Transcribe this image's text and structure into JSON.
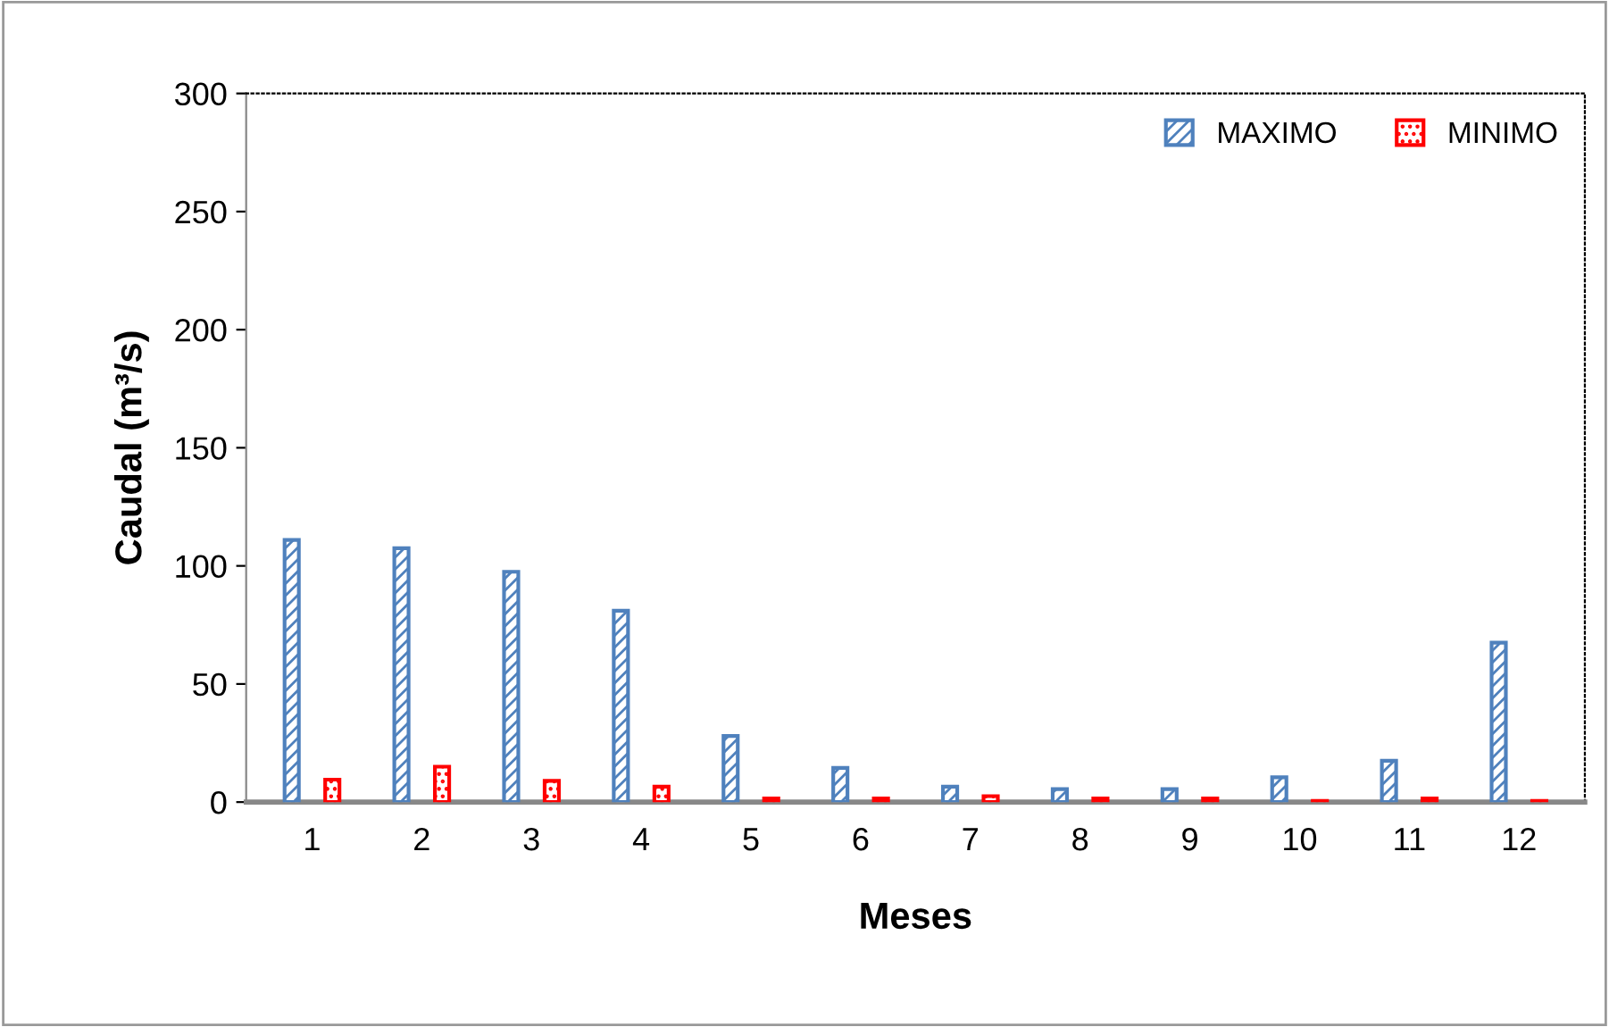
{
  "chart_data": {
    "type": "bar",
    "xlabel": "Meses",
    "ylabel": "Caudal (m³/s)",
    "categories": [
      "1",
      "2",
      "3",
      "4",
      "5",
      "6",
      "7",
      "8",
      "9",
      "10",
      "11",
      "12"
    ],
    "series": [
      {
        "name": "MAXIMO",
        "color": "#4f81bd",
        "values": [
          111,
          107.5,
          97.5,
          81,
          28,
          14.5,
          6.5,
          5.5,
          5.5,
          10.5,
          17.5,
          67.5
        ]
      },
      {
        "name": "MINIMO",
        "color": "#ff0000",
        "values": [
          9.5,
          15,
          9,
          6.5,
          1.5,
          1.5,
          2.5,
          1.5,
          1.5,
          0.5,
          1.5,
          0.5
        ]
      }
    ],
    "ylim": [
      0,
      300
    ],
    "yticks": [
      0,
      50,
      100,
      150,
      200,
      250,
      300
    ],
    "grid": false,
    "legend": "top right"
  }
}
